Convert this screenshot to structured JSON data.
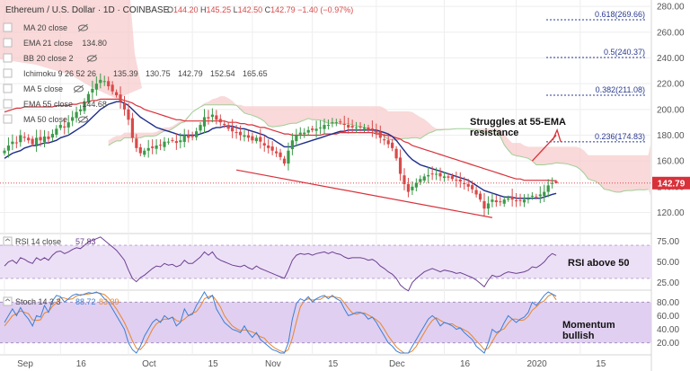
{
  "header": {
    "title": "Ethereum / U.S. Dollar · 1D · COINBASE",
    "ohlc": [
      {
        "k": "O",
        "v": "144.20"
      },
      {
        "k": "H",
        "v": "145.25"
      },
      {
        "k": "L",
        "v": "142.50"
      },
      {
        "k": "C",
        "v": "142.79"
      }
    ],
    "change": "−1.40 (−0.97%)"
  },
  "indicators": [
    {
      "label": "MA 20 close",
      "values": [],
      "muted": true,
      "eye": true
    },
    {
      "label": "EMA 21 close",
      "values": [
        {
          "v": "134.80",
          "c": "#1e2e8c"
        }
      ],
      "muted": false,
      "eye": false
    },
    {
      "label": "BB 20 close 2",
      "values": [],
      "muted": true,
      "eye": true
    },
    {
      "label": "Ichimoku 9 26 52 26",
      "values": [
        {
          "v": "135.39",
          "c": "#1f57c7"
        },
        {
          "v": "130.75",
          "c": "#8a1b1b"
        },
        {
          "v": "142.79",
          "c": "#2f8a2f"
        },
        {
          "v": "152.54",
          "c": "#1b8a3a"
        },
        {
          "v": "165.65",
          "c": "#d9313a"
        }
      ],
      "muted": false,
      "eye": false
    },
    {
      "label": "MA 5 close",
      "values": [],
      "muted": true,
      "eye": true
    },
    {
      "label": "EMA 55 close",
      "values": [
        {
          "v": "144.68",
          "c": "#e25b4a"
        }
      ],
      "muted": false,
      "eye": false
    },
    {
      "label": "MA 50 close",
      "values": [],
      "muted": true,
      "eye": true
    }
  ],
  "price_tag": "142.79",
  "annotations": {
    "resistance_l1": "Struggles at 55-EMA",
    "resistance_l2": "resistance",
    "rsi": "RSI above 50",
    "stoch_l1": "Momentum",
    "stoch_l2": "bullish"
  },
  "rsi_legend": {
    "label": "RSI 14 close",
    "value": "57.83"
  },
  "stoch_legend": {
    "label": "Stoch 14 3 3",
    "k": "88.72",
    "d": "83.39"
  },
  "colors": {
    "up": "#3c9a49",
    "down": "#d94a4a",
    "ema21": "#1e2e8c",
    "ema55": "#d9313a",
    "cloud": "#f7c9c9",
    "cloud_bull": "#d6efcf",
    "span": "#9fcf97",
    "fib": "#2a3b8f",
    "rsi_line": "#6d3f91",
    "rsi_band": "#ece0f6",
    "stoch_k": "#3c7fd6",
    "stoch_d": "#e6852f",
    "stoch_band": "#e0cff0",
    "channel": "#d9313a",
    "price_tag": "#d9313a"
  },
  "chart_data": [
    {
      "type": "candlestick",
      "title": "Ethereum / U.S. Dollar · 1D · COINBASE",
      "x_tick_labels": [
        "Sep",
        "16",
        "Oct",
        "15",
        "Nov",
        "15",
        "Dec",
        "16",
        "2020",
        "15"
      ],
      "y_tick_labels": [
        "120.00",
        "140.00",
        "160.00",
        "180.00",
        "200.00",
        "220.00",
        "240.00",
        "260.00",
        "280.00"
      ],
      "ylim": [
        105,
        285
      ],
      "ohlc_last": {
        "open": 144.2,
        "high": 145.25,
        "low": 142.5,
        "close": 142.79
      },
      "close_series": [
        168,
        172,
        175,
        174,
        180,
        178,
        176,
        173,
        178,
        176,
        179,
        177,
        181,
        185,
        188,
        186,
        190,
        194,
        198,
        200,
        206,
        212,
        216,
        220,
        223,
        222,
        218,
        214,
        211,
        206,
        200,
        192,
        178,
        170,
        166,
        168,
        170,
        170,
        172,
        172,
        175,
        175,
        176,
        174,
        176,
        180,
        178,
        179,
        183,
        188,
        194,
        193,
        196,
        192,
        190,
        188,
        185,
        183,
        182,
        180,
        180,
        178,
        176,
        178,
        175,
        172,
        170,
        168,
        166,
        163,
        158,
        168,
        176,
        180,
        182,
        182,
        184,
        184,
        185,
        186,
        188,
        188,
        190,
        190,
        190,
        188,
        186,
        186,
        186,
        186,
        186,
        184,
        184,
        182,
        178,
        176,
        173,
        170,
        162,
        150,
        142,
        136,
        140,
        143,
        146,
        148,
        149,
        150,
        150,
        148,
        148,
        147,
        146,
        145,
        144,
        142,
        140,
        138,
        134,
        130,
        123,
        127,
        130,
        128,
        128,
        130,
        131,
        130,
        129,
        129,
        130,
        131,
        133,
        132,
        134,
        136,
        141,
        143,
        142.79
      ],
      "ema21": [
        162,
        164,
        166,
        167,
        168,
        170,
        171,
        172,
        172,
        173,
        174,
        174,
        175,
        176,
        178,
        179,
        180,
        182,
        184,
        186,
        188,
        191,
        194,
        197,
        200,
        202,
        204,
        205,
        206,
        206,
        205,
        203,
        200,
        197,
        194,
        192,
        190,
        188,
        186,
        185,
        184,
        183,
        182,
        181,
        180,
        180,
        180,
        180,
        180,
        181,
        182,
        183,
        185,
        186,
        186,
        187,
        187,
        187,
        186,
        185,
        185,
        184,
        183,
        182,
        181,
        180,
        178,
        177,
        175,
        173,
        171,
        171,
        171,
        172,
        173,
        174,
        175,
        176,
        177,
        178,
        179,
        180,
        181,
        182,
        183,
        183,
        184,
        184,
        184,
        184,
        184,
        184,
        184,
        184,
        183,
        182,
        181,
        179,
        176,
        172,
        168,
        164,
        161,
        159,
        157,
        156,
        155,
        154,
        153,
        152,
        151,
        150,
        149,
        148,
        147,
        146,
        145,
        143,
        141,
        139,
        137,
        136,
        135,
        134,
        133,
        132,
        132,
        132,
        131,
        131,
        131,
        131,
        131,
        131,
        131,
        132,
        133,
        134,
        134.8
      ],
      "ema55": [
        198,
        199,
        200,
        201,
        201,
        202,
        202,
        202,
        202,
        202,
        202,
        202,
        202,
        203,
        203,
        203,
        203,
        204,
        204,
        205,
        205,
        206,
        207,
        207,
        208,
        208,
        208,
        208,
        208,
        208,
        207,
        206,
        205,
        203,
        202,
        200,
        199,
        198,
        197,
        196,
        195,
        194,
        193,
        192,
        192,
        191,
        191,
        191,
        191,
        191,
        191,
        191,
        191,
        191,
        191,
        191,
        190,
        190,
        190,
        189,
        189,
        188,
        188,
        187,
        186,
        186,
        185,
        184,
        183,
        182,
        181,
        181,
        180,
        180,
        180,
        180,
        180,
        180,
        180,
        180,
        181,
        181,
        181,
        181,
        182,
        182,
        182,
        182,
        182,
        182,
        182,
        182,
        182,
        181,
        181,
        180,
        180,
        179,
        178,
        177,
        175,
        174,
        172,
        171,
        170,
        169,
        168,
        167,
        166,
        165,
        164,
        163,
        162,
        161,
        160,
        159,
        158,
        157,
        156,
        155,
        154,
        153,
        152,
        151,
        150,
        149,
        148,
        147,
        146,
        146,
        145,
        145,
        145,
        145,
        145,
        145,
        145,
        144.7,
        144.68
      ],
      "fib_levels": [
        {
          "label": "0.618(269.66)",
          "value": 269.66
        },
        {
          "label": "0.5(240.37)",
          "value": 240.37
        },
        {
          "label": "0.382(211.08)",
          "value": 211.08
        },
        {
          "label": "0.236(174.83)",
          "value": 174.83
        }
      ]
    },
    {
      "type": "line",
      "title": "RSI 14 close",
      "ylabel": "",
      "y_tick_labels": [
        "25.00",
        "50.00",
        "75.00"
      ],
      "ylim": [
        18,
        82
      ],
      "band": [
        30,
        70
      ],
      "values": [
        45,
        50,
        52,
        48,
        55,
        53,
        50,
        48,
        55,
        52,
        55,
        52,
        58,
        62,
        63,
        60,
        62,
        65,
        67,
        66,
        70,
        74,
        76,
        78,
        80,
        76,
        72,
        68,
        64,
        58,
        52,
        40,
        30,
        26,
        31,
        34,
        38,
        42,
        45,
        44,
        48,
        46,
        47,
        44,
        46,
        52,
        48,
        48,
        52,
        56,
        62,
        58,
        62,
        55,
        52,
        50,
        48,
        46,
        45,
        44,
        46,
        43,
        41,
        45,
        42,
        40,
        38,
        36,
        34,
        32,
        30,
        40,
        52,
        58,
        60,
        59,
        60,
        58,
        60,
        61,
        62,
        60,
        62,
        60,
        59,
        56,
        54,
        55,
        55,
        55,
        54,
        52,
        53,
        50,
        45,
        42,
        38,
        35,
        30,
        22,
        18,
        15,
        25,
        30,
        34,
        38,
        40,
        42,
        40,
        38,
        40,
        39,
        38,
        36,
        37,
        35,
        33,
        31,
        28,
        24,
        20,
        28,
        34,
        32,
        33,
        36,
        38,
        37,
        36,
        37,
        38,
        40,
        44,
        43,
        46,
        50,
        56,
        60,
        57.83
      ]
    },
    {
      "type": "line",
      "title": "Stoch 14 3 3",
      "y_tick_labels": [
        "20.00",
        "40.00",
        "60.00",
        "80.00"
      ],
      "ylim": [
        5,
        95
      ],
      "band": [
        20,
        80
      ],
      "series": [
        {
          "name": "%K",
          "values": [
            50,
            60,
            70,
            60,
            72,
            62,
            55,
            45,
            60,
            58,
            75,
            65,
            82,
            90,
            88,
            80,
            85,
            90,
            92,
            90,
            92,
            94,
            93,
            95,
            92,
            85,
            80,
            70,
            60,
            50,
            40,
            20,
            10,
            5,
            15,
            30,
            40,
            50,
            55,
            50,
            60,
            55,
            58,
            45,
            50,
            70,
            60,
            62,
            75,
            85,
            95,
            85,
            90,
            70,
            60,
            50,
            45,
            40,
            38,
            35,
            45,
            35,
            28,
            35,
            25,
            20,
            15,
            10,
            8,
            5,
            5,
            20,
            55,
            78,
            85,
            82,
            88,
            80,
            85,
            88,
            90,
            85,
            90,
            85,
            82,
            70,
            60,
            62,
            65,
            65,
            62,
            55,
            58,
            50,
            40,
            30,
            20,
            15,
            8,
            5,
            5,
            5,
            15,
            25,
            35,
            45,
            55,
            60,
            55,
            45,
            50,
            48,
            45,
            40,
            42,
            35,
            30,
            25,
            15,
            10,
            5,
            20,
            40,
            35,
            38,
            50,
            60,
            55,
            50,
            55,
            58,
            65,
            80,
            75,
            82,
            90,
            95,
            92,
            88.72
          ]
        },
        {
          "name": "%D",
          "values": [
            45,
            52,
            60,
            63,
            67,
            65,
            63,
            54,
            53,
            54,
            64,
            66,
            74,
            79,
            87,
            86,
            84,
            85,
            89,
            91,
            91,
            92,
            93,
            94,
            93,
            91,
            86,
            78,
            70,
            60,
            50,
            37,
            23,
            12,
            10,
            17,
            28,
            40,
            48,
            52,
            55,
            55,
            58,
            53,
            51,
            55,
            60,
            64,
            66,
            74,
            85,
            88,
            90,
            82,
            73,
            60,
            52,
            45,
            41,
            38,
            39,
            38,
            36,
            33,
            29,
            27,
            20,
            15,
            11,
            8,
            6,
            10,
            27,
            51,
            73,
            82,
            85,
            83,
            84,
            84,
            88,
            88,
            88,
            87,
            86,
            79,
            71,
            64,
            62,
            64,
            64,
            61,
            58,
            54,
            49,
            40,
            30,
            22,
            14,
            9,
            5,
            5,
            8,
            15,
            25,
            35,
            45,
            53,
            57,
            53,
            50,
            48,
            48,
            44,
            42,
            39,
            36,
            30,
            23,
            17,
            10,
            12,
            22,
            32,
            38,
            41,
            49,
            55,
            55,
            53,
            54,
            59,
            68,
            73,
            79,
            82,
            89,
            92,
            83.39
          ]
        }
      ]
    }
  ]
}
